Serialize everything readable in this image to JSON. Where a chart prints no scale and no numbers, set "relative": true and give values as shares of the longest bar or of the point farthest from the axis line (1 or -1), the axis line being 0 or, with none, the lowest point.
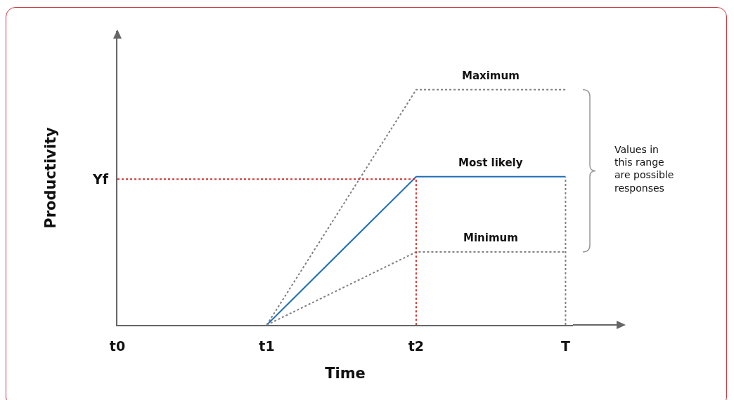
{
  "chart_data": {
    "type": "line",
    "relative": true,
    "xlabel": "Time",
    "ylabel": "Productivity",
    "categories": [
      "t0",
      "t1",
      "t2",
      "T"
    ],
    "grid": false,
    "legend": false,
    "marker": "none",
    "tick_labels": "x",
    "series": [
      {
        "name": "Maximum",
        "color": "#808080",
        "line_style": "dotted",
        "values": [
          null,
          0,
          1,
          1
        ]
      },
      {
        "name": "Most likely",
        "color": "#1f6fb5",
        "line_style": "solid",
        "values": [
          null,
          0,
          0.63,
          0.63
        ]
      },
      {
        "name": "Minimum",
        "color": "#808080",
        "line_style": "dotted",
        "values": [
          null,
          0,
          0.31,
          0.31
        ]
      },
      {
        "color": "#d0312d",
        "line_style": "dotted",
        "x": [
          "t0",
          "t2",
          "t2"
        ],
        "values": [
          0.62,
          0.62,
          0
        ]
      },
      {
        "color": "#808080",
        "line_style": "dotted",
        "x": [
          "T",
          "T"
        ],
        "values": [
          0,
          0.63
        ]
      }
    ],
    "annotations": [
      {
        "text": "Yf",
        "x": "t0",
        "y": 0.62
      },
      "Values in\nthis range\nare possible\nresponses"
    ]
  }
}
